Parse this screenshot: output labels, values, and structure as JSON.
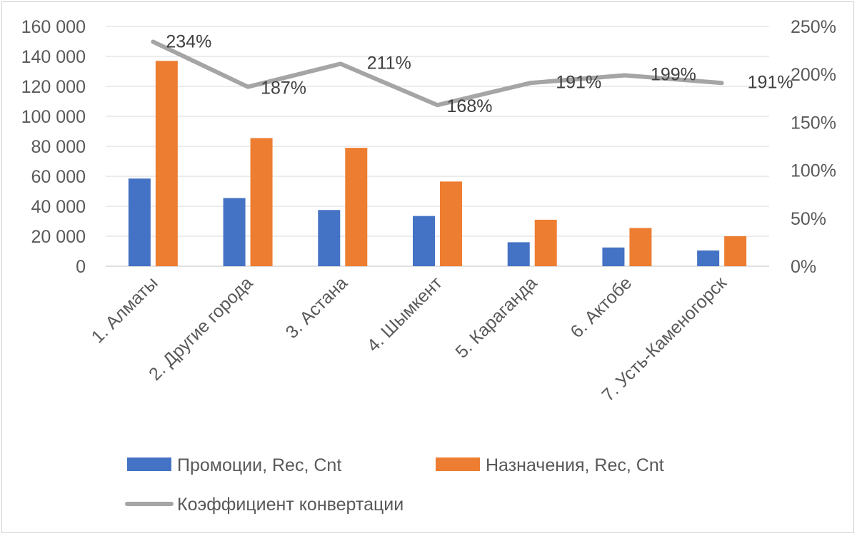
{
  "chart_data": {
    "type": "bar",
    "categories": [
      "1. Алматы",
      "2. Другие города",
      "3. Астана",
      "4. Шымкент",
      "5. Караганда",
      "6. Актобе",
      "7. Усть-Каменогорск"
    ],
    "series": [
      {
        "name": "Промоции, Rec, Cnt",
        "kind": "bar",
        "axis": "left",
        "color": "#4472C4",
        "values": [
          58500,
          45500,
          37500,
          33500,
          16000,
          12500,
          10500
        ]
      },
      {
        "name": "Назначения, Rec, Cnt",
        "kind": "bar",
        "axis": "left",
        "color": "#ED7D31",
        "values": [
          137000,
          85500,
          79000,
          56500,
          31000,
          25500,
          20000
        ]
      },
      {
        "name": "Коэффициент конвертации",
        "kind": "line",
        "axis": "right",
        "color": "#A5A5A5",
        "values": [
          2.34,
          1.87,
          2.11,
          1.68,
          1.91,
          1.99,
          1.91
        ],
        "labels": [
          "234%",
          "187%",
          "211%",
          "168%",
          "191%",
          "199%",
          "191%"
        ]
      }
    ],
    "y_left": {
      "ylim": [
        0,
        160000
      ],
      "ticks": [
        0,
        20000,
        40000,
        60000,
        80000,
        100000,
        120000,
        140000,
        160000
      ],
      "tick_labels": [
        "0",
        "20 000",
        "40 000",
        "60 000",
        "80 000",
        "100 000",
        "120 000",
        "140 000",
        "160 000"
      ]
    },
    "y_right": {
      "ylim": [
        0,
        2.5
      ],
      "ticks": [
        0,
        0.5,
        1,
        1.5,
        2,
        2.5
      ],
      "tick_labels": [
        "0%",
        "50%",
        "100%",
        "150%",
        "200%",
        "250%"
      ]
    },
    "grid": true,
    "legend_position": "bottom-left"
  }
}
